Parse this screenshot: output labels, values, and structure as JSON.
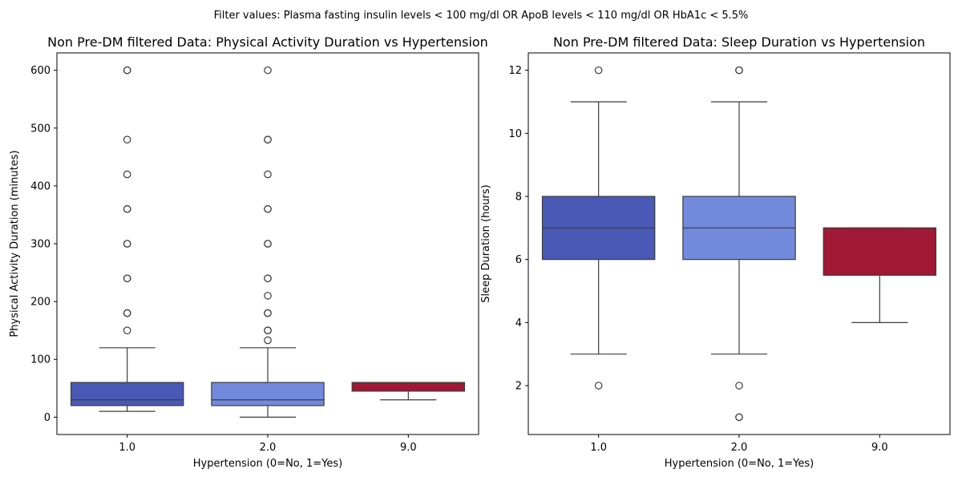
{
  "suptitle": "Filter values: Plasma fasting insulin levels < 100 mg/dl OR ApoB levels < 110 mg/dl OR HbA1c < 5.5%",
  "chart_data": [
    {
      "type": "box",
      "title": "Non Pre-DM filtered Data: Physical Activity Duration vs Hypertension",
      "xlabel": "Hypertension (0=No, 1=Yes)",
      "ylabel": "Physical Activity Duration (minutes)",
      "categories": [
        "1.0",
        "2.0",
        "9.0"
      ],
      "ylim": [
        -30,
        630
      ],
      "yticks": [
        0,
        100,
        200,
        300,
        400,
        500,
        600
      ],
      "grid": false,
      "boxes": [
        {
          "category": "1.0",
          "color": "#4a58b6",
          "whisker_low": 10,
          "q1": 20,
          "median": 30,
          "q3": 60,
          "whisker_high": 120,
          "outliers": [
            150,
            180,
            180,
            240,
            240,
            300,
            300,
            360,
            360,
            420,
            480,
            600,
            600
          ]
        },
        {
          "category": "2.0",
          "color": "#7289dc",
          "whisker_low": 0,
          "q1": 20,
          "median": 30,
          "q3": 60,
          "whisker_high": 120,
          "outliers": [
            133,
            150,
            150,
            180,
            180,
            210,
            240,
            240,
            300,
            300,
            360,
            360,
            420,
            480,
            480,
            600
          ]
        },
        {
          "category": "9.0",
          "color": "#a01834",
          "whisker_low": 30,
          "q1": 45,
          "median": 60,
          "q3": 60,
          "whisker_high": 60,
          "outliers": []
        }
      ]
    },
    {
      "type": "box",
      "title": "Non Pre-DM filtered Data: Sleep Duration vs Hypertension",
      "xlabel": "Hypertension (0=No, 1=Yes)",
      "ylabel": "Sleep Duration (hours)",
      "categories": [
        "1.0",
        "2.0",
        "9.0"
      ],
      "ylim": [
        0.45,
        12.55
      ],
      "yticks": [
        2,
        4,
        6,
        8,
        10,
        12
      ],
      "grid": false,
      "boxes": [
        {
          "category": "1.0",
          "color": "#4a58b6",
          "whisker_low": 3,
          "q1": 6,
          "median": 7,
          "q3": 8,
          "whisker_high": 11,
          "outliers": [
            2,
            12
          ]
        },
        {
          "category": "2.0",
          "color": "#7289dc",
          "whisker_low": 3,
          "q1": 6,
          "median": 7,
          "q3": 8,
          "whisker_high": 11,
          "outliers": [
            1,
            1,
            2,
            12,
            12
          ]
        },
        {
          "category": "9.0",
          "color": "#a01834",
          "whisker_low": 4,
          "q1": 5.5,
          "median": 7,
          "q3": 7,
          "whisker_high": 7,
          "outliers": []
        }
      ]
    }
  ]
}
